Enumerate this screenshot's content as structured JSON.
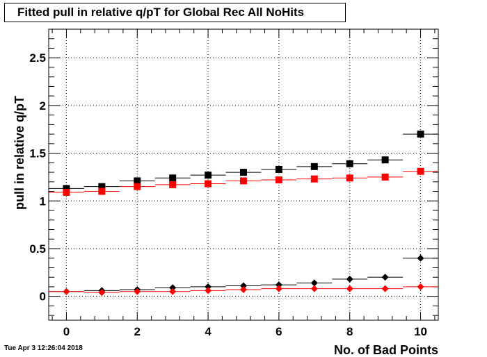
{
  "title": "Fitted pull in relative q/pT for Global Rec All NoHits",
  "timestamp": "Tue Apr  3 12:26:04 2018",
  "chart_data": {
    "type": "scatter",
    "title": "Fitted pull in relative q/pT for Global Rec All NoHits",
    "xlabel": "No. of Bad Points",
    "ylabel": "pull in relative q/pT",
    "xlim": [
      -0.5,
      10.5
    ],
    "ylim": [
      -0.25,
      2.8
    ],
    "grid": true,
    "x_ticks": [
      "0",
      "2",
      "4",
      "6",
      "8",
      "10"
    ],
    "y_ticks": [
      "0",
      "0.5",
      "1",
      "1.5",
      "2",
      "2.5"
    ],
    "x": [
      0,
      1,
      2,
      3,
      4,
      5,
      6,
      7,
      8,
      9,
      10
    ],
    "series": [
      {
        "color": "#000000",
        "marker": "square",
        "values": [
          1.13,
          1.15,
          1.21,
          1.24,
          1.27,
          1.3,
          1.33,
          1.36,
          1.39,
          1.43,
          1.7
        ]
      },
      {
        "color": "#ff0000",
        "marker": "square",
        "values": [
          1.09,
          1.1,
          1.15,
          1.17,
          1.18,
          1.21,
          1.22,
          1.23,
          1.24,
          1.25,
          1.31
        ]
      },
      {
        "color": "#000000",
        "marker": "diamond",
        "values": [
          0.05,
          0.06,
          0.07,
          0.09,
          0.1,
          0.11,
          0.12,
          0.14,
          0.18,
          0.2,
          0.4
        ]
      },
      {
        "color": "#ff0000",
        "marker": "diamond",
        "values": [
          0.05,
          0.04,
          0.05,
          0.05,
          0.06,
          0.07,
          0.08,
          0.08,
          0.08,
          0.08,
          0.1
        ]
      }
    ]
  }
}
